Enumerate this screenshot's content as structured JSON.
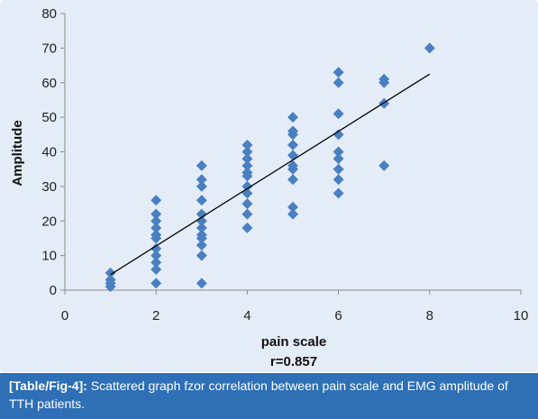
{
  "chart_data": {
    "type": "scatter",
    "xlabel": "pain scale",
    "subtitle": "r=0.857",
    "ylabel": "Amplitude",
    "xlim": [
      0,
      10
    ],
    "ylim": [
      0,
      80
    ],
    "x_ticks": [
      0,
      2,
      4,
      6,
      8,
      10
    ],
    "y_ticks": [
      0,
      10,
      20,
      30,
      40,
      50,
      60,
      70,
      80
    ],
    "grid": false,
    "marker": "diamond",
    "marker_color": "#4a7fc1",
    "trendline_color": "#000000",
    "trendline": {
      "x": [
        1,
        8
      ],
      "y": [
        4.5,
        62.5
      ]
    },
    "points": [
      {
        "x": 1,
        "y": 5
      },
      {
        "x": 1,
        "y": 3
      },
      {
        "x": 1,
        "y": 2
      },
      {
        "x": 1,
        "y": 1
      },
      {
        "x": 2,
        "y": 26
      },
      {
        "x": 2,
        "y": 22
      },
      {
        "x": 2,
        "y": 20
      },
      {
        "x": 2,
        "y": 18
      },
      {
        "x": 2,
        "y": 16
      },
      {
        "x": 2,
        "y": 15
      },
      {
        "x": 2,
        "y": 12
      },
      {
        "x": 2,
        "y": 10
      },
      {
        "x": 2,
        "y": 8
      },
      {
        "x": 2,
        "y": 6
      },
      {
        "x": 2,
        "y": 2
      },
      {
        "x": 3,
        "y": 36
      },
      {
        "x": 3,
        "y": 32
      },
      {
        "x": 3,
        "y": 30
      },
      {
        "x": 3,
        "y": 26
      },
      {
        "x": 3,
        "y": 22
      },
      {
        "x": 3,
        "y": 20
      },
      {
        "x": 3,
        "y": 18
      },
      {
        "x": 3,
        "y": 16
      },
      {
        "x": 3,
        "y": 15
      },
      {
        "x": 3,
        "y": 13
      },
      {
        "x": 3,
        "y": 10
      },
      {
        "x": 3,
        "y": 2
      },
      {
        "x": 4,
        "y": 42
      },
      {
        "x": 4,
        "y": 40
      },
      {
        "x": 4,
        "y": 38
      },
      {
        "x": 4,
        "y": 36
      },
      {
        "x": 4,
        "y": 34
      },
      {
        "x": 4,
        "y": 33
      },
      {
        "x": 4,
        "y": 30
      },
      {
        "x": 4,
        "y": 28
      },
      {
        "x": 4,
        "y": 25
      },
      {
        "x": 4,
        "y": 22
      },
      {
        "x": 4,
        "y": 18
      },
      {
        "x": 5,
        "y": 50
      },
      {
        "x": 5,
        "y": 46
      },
      {
        "x": 5,
        "y": 45
      },
      {
        "x": 5,
        "y": 42
      },
      {
        "x": 5,
        "y": 39
      },
      {
        "x": 5,
        "y": 36
      },
      {
        "x": 5,
        "y": 35
      },
      {
        "x": 5,
        "y": 32
      },
      {
        "x": 5,
        "y": 24
      },
      {
        "x": 5,
        "y": 22
      },
      {
        "x": 6,
        "y": 63
      },
      {
        "x": 6,
        "y": 60
      },
      {
        "x": 6,
        "y": 51
      },
      {
        "x": 6,
        "y": 45
      },
      {
        "x": 6,
        "y": 40
      },
      {
        "x": 6,
        "y": 38
      },
      {
        "x": 6,
        "y": 35
      },
      {
        "x": 6,
        "y": 32
      },
      {
        "x": 6,
        "y": 28
      },
      {
        "x": 7,
        "y": 61
      },
      {
        "x": 7,
        "y": 60
      },
      {
        "x": 7,
        "y": 54
      },
      {
        "x": 7,
        "y": 36
      },
      {
        "x": 8,
        "y": 70
      }
    ]
  },
  "caption": {
    "tag": "[Table/Fig-4]:",
    "text": " Scattered graph fzor correlation between pain scale and EMG amplitude of TTH patients."
  }
}
